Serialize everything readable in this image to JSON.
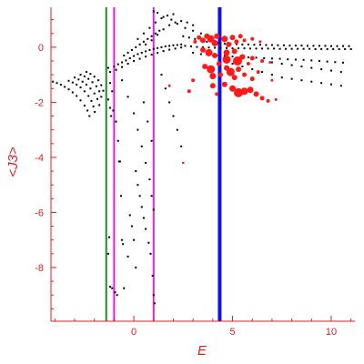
{
  "chart_data": {
    "type": "scatter",
    "title": "",
    "xlabel": "E",
    "ylabel": "<J3>",
    "xlim": [
      -4.2,
      11.2
    ],
    "ylim": [
      -9.95,
      1.45
    ],
    "x_ticks": [
      0,
      5,
      10
    ],
    "x_tick_labels": [
      "0",
      "5",
      "10"
    ],
    "y_ticks": [
      0,
      -2,
      -4,
      -6,
      -8
    ],
    "y_tick_labels": [
      "0",
      "-2",
      "-4",
      "-6",
      "-8"
    ],
    "grid": false,
    "legend": "none",
    "colors": {
      "axis": "#e8191f",
      "black_points": "#000000",
      "red_points": "#ff1a1a",
      "green_line": "#1e8c1e",
      "magenta_line": "#e020e0",
      "blue_line": "#1010e8"
    },
    "vertical_lines": [
      {
        "x": -1.4,
        "color": "#1e8c1e",
        "width": 2
      },
      {
        "x": -1.0,
        "color": "#e020e0",
        "width": 2
      },
      {
        "x": 1.0,
        "color": "#e020e0",
        "width": 2
      },
      {
        "x": 4.35,
        "color": "#1010e8",
        "width": 4
      }
    ],
    "black_series": [
      [
        -4.1,
        -1.25
      ],
      [
        -3.9,
        -1.3
      ],
      [
        -3.7,
        -1.36
      ],
      [
        -3.5,
        -1.44
      ],
      [
        -3.3,
        -1.53
      ],
      [
        -3.1,
        -1.64
      ],
      [
        -2.9,
        -1.77
      ],
      [
        -2.7,
        -1.93
      ],
      [
        -2.5,
        -2.12
      ],
      [
        -2.35,
        -2.3
      ],
      [
        -2.25,
        -2.5
      ],
      [
        -3.3,
        -1.22
      ],
      [
        -3.1,
        -1.28
      ],
      [
        -2.9,
        -1.36
      ],
      [
        -2.7,
        -1.46
      ],
      [
        -2.5,
        -1.6
      ],
      [
        -2.3,
        -1.77
      ],
      [
        -2.15,
        -1.95
      ],
      [
        -2.05,
        -2.15
      ],
      [
        -1.98,
        -2.35
      ],
      [
        -3.0,
        -1.1
      ],
      [
        -2.8,
        -1.17
      ],
      [
        -2.6,
        -1.25
      ],
      [
        -2.4,
        -1.36
      ],
      [
        -2.2,
        -1.5
      ],
      [
        -2.0,
        -1.68
      ],
      [
        -1.85,
        -1.88
      ],
      [
        -1.75,
        -2.1
      ],
      [
        -2.7,
        -1.0
      ],
      [
        -2.5,
        -1.06
      ],
      [
        -2.3,
        -1.15
      ],
      [
        -2.1,
        -1.27
      ],
      [
        -1.9,
        -1.42
      ],
      [
        -1.75,
        -1.6
      ],
      [
        -1.65,
        -1.8
      ],
      [
        -2.4,
        -0.9
      ],
      [
        -2.2,
        -0.97
      ],
      [
        -2.0,
        -1.07
      ],
      [
        -1.8,
        -1.2
      ],
      [
        -1.65,
        -1.38
      ],
      [
        -1.55,
        -1.58
      ],
      [
        -1.3,
        -1.9
      ],
      [
        -1.2,
        -2.2
      ],
      [
        -1.15,
        -2.5
      ],
      [
        -1.05,
        -2.3
      ],
      [
        -1.1,
        -1.6
      ],
      [
        -1.2,
        -1.3
      ],
      [
        -1.3,
        -0.75
      ],
      [
        -1.0,
        -0.7
      ],
      [
        -0.8,
        -0.62
      ],
      [
        -0.6,
        -0.55
      ],
      [
        -0.4,
        -0.48
      ],
      [
        -0.2,
        -0.4
      ],
      [
        0.0,
        -0.32
      ],
      [
        0.2,
        -0.25
      ],
      [
        0.4,
        -0.2
      ],
      [
        0.6,
        -0.15
      ],
      [
        0.8,
        -0.1
      ],
      [
        1.0,
        -0.06
      ],
      [
        1.2,
        -0.03
      ],
      [
        1.4,
        0.0
      ],
      [
        1.6,
        0.03
      ],
      [
        1.8,
        0.05
      ],
      [
        2.0,
        0.07
      ],
      [
        2.2,
        0.08
      ],
      [
        2.4,
        0.1
      ],
      [
        -1.2,
        -0.9
      ],
      [
        -0.9,
        -0.82
      ],
      [
        -0.6,
        -0.72
      ],
      [
        -0.3,
        -0.6
      ],
      [
        0.0,
        -0.5
      ],
      [
        0.3,
        -0.42
      ],
      [
        0.6,
        -0.34
      ],
      [
        0.9,
        -0.27
      ],
      [
        1.2,
        -0.2
      ],
      [
        1.5,
        -0.14
      ],
      [
        1.8,
        -0.09
      ],
      [
        2.1,
        -0.05
      ],
      [
        2.4,
        -0.01
      ],
      [
        -0.5,
        -0.3
      ],
      [
        -0.3,
        -0.2
      ],
      [
        -0.1,
        -0.1
      ],
      [
        0.1,
        0.0
      ],
      [
        0.3,
        0.1
      ],
      [
        0.5,
        0.2
      ],
      [
        0.7,
        0.3
      ],
      [
        0.9,
        0.4
      ],
      [
        1.1,
        0.5
      ],
      [
        1.3,
        0.6
      ],
      [
        0.2,
        0.3
      ],
      [
        0.5,
        0.5
      ],
      [
        0.8,
        0.7
      ],
      [
        1.1,
        0.9
      ],
      [
        1.4,
        1.05
      ],
      [
        1.7,
        1.15
      ],
      [
        2.0,
        1.2
      ],
      [
        0.6,
        0.1
      ],
      [
        0.9,
        0.25
      ],
      [
        1.2,
        0.45
      ],
      [
        1.5,
        0.65
      ],
      [
        1.8,
        0.8
      ],
      [
        2.1,
        0.9
      ],
      [
        2.4,
        0.95
      ],
      [
        2.7,
        0.9
      ],
      [
        3.0,
        0.8
      ],
      [
        1.0,
        1.3
      ],
      [
        1.2,
        1.25
      ],
      [
        1.5,
        1.1
      ],
      [
        1.9,
        1.0
      ],
      [
        2.2,
        0.85
      ],
      [
        2.6,
        0.7
      ],
      [
        3.0,
        0.6
      ],
      [
        3.4,
        0.5
      ],
      [
        2.5,
        0.4
      ],
      [
        2.8,
        0.35
      ],
      [
        3.1,
        0.3
      ],
      [
        3.4,
        0.25
      ],
      [
        3.7,
        0.2
      ],
      [
        4.0,
        0.18
      ],
      [
        4.3,
        0.15
      ],
      [
        4.6,
        0.13
      ],
      [
        4.9,
        0.12
      ],
      [
        5.2,
        0.11
      ],
      [
        5.5,
        0.1
      ],
      [
        5.8,
        0.1
      ],
      [
        6.1,
        0.09
      ],
      [
        6.4,
        0.09
      ],
      [
        6.7,
        0.08
      ],
      [
        7.0,
        0.08
      ],
      [
        7.3,
        0.07
      ],
      [
        7.6,
        0.07
      ],
      [
        7.9,
        0.06
      ],
      [
        8.2,
        0.06
      ],
      [
        8.5,
        0.06
      ],
      [
        8.8,
        0.05
      ],
      [
        9.1,
        0.05
      ],
      [
        9.4,
        0.05
      ],
      [
        9.7,
        0.05
      ],
      [
        10.0,
        0.04
      ],
      [
        10.3,
        0.04
      ],
      [
        10.6,
        0.04
      ],
      [
        10.9,
        0.04
      ],
      [
        2.6,
        0.05
      ],
      [
        2.9,
        0.03
      ],
      [
        3.2,
        0.01
      ],
      [
        3.5,
        0.0
      ],
      [
        3.8,
        -0.01
      ],
      [
        4.1,
        -0.02
      ],
      [
        4.4,
        -0.03
      ],
      [
        4.7,
        -0.03
      ],
      [
        5.0,
        -0.04
      ],
      [
        5.3,
        -0.04
      ],
      [
        5.6,
        -0.04
      ],
      [
        5.9,
        -0.05
      ],
      [
        6.2,
        -0.05
      ],
      [
        6.5,
        -0.05
      ],
      [
        6.8,
        -0.05
      ],
      [
        7.1,
        -0.05
      ],
      [
        7.4,
        -0.06
      ],
      [
        7.7,
        -0.06
      ],
      [
        8.0,
        -0.06
      ],
      [
        8.3,
        -0.06
      ],
      [
        8.6,
        -0.06
      ],
      [
        8.9,
        -0.06
      ],
      [
        9.2,
        -0.07
      ],
      [
        9.5,
        -0.07
      ],
      [
        9.8,
        -0.07
      ],
      [
        10.1,
        -0.07
      ],
      [
        10.4,
        -0.07
      ],
      [
        10.7,
        -0.07
      ],
      [
        11.0,
        -0.07
      ],
      [
        3.0,
        -0.2
      ],
      [
        3.4,
        -0.25
      ],
      [
        3.8,
        -0.28
      ],
      [
        4.2,
        -0.3
      ],
      [
        4.6,
        -0.32
      ],
      [
        5.0,
        -0.34
      ],
      [
        5.4,
        -0.35
      ],
      [
        5.8,
        -0.37
      ],
      [
        6.2,
        -0.38
      ],
      [
        6.6,
        -0.4
      ],
      [
        7.0,
        -0.41
      ],
      [
        7.4,
        -0.42
      ],
      [
        7.8,
        -0.44
      ],
      [
        8.2,
        -0.45
      ],
      [
        8.6,
        -0.46
      ],
      [
        9.0,
        -0.48
      ],
      [
        9.4,
        -0.5
      ],
      [
        9.8,
        -0.52
      ],
      [
        10.2,
        -0.54
      ],
      [
        10.6,
        -0.56
      ],
      [
        5.0,
        -0.6
      ],
      [
        5.5,
        -0.7
      ],
      [
        6.0,
        -0.8
      ],
      [
        6.5,
        -0.9
      ],
      [
        7.0,
        -1.0
      ],
      [
        7.5,
        -1.1
      ],
      [
        8.0,
        -1.15
      ],
      [
        8.5,
        -1.2
      ],
      [
        9.0,
        -1.25
      ],
      [
        9.5,
        -1.3
      ],
      [
        10.0,
        -1.35
      ],
      [
        10.5,
        -1.4
      ],
      [
        5.5,
        -0.3
      ],
      [
        6.0,
        -0.4
      ],
      [
        6.5,
        -0.5
      ],
      [
        7.0,
        -0.55
      ],
      [
        7.5,
        -0.6
      ],
      [
        8.0,
        -0.65
      ],
      [
        8.5,
        -0.7
      ],
      [
        9.0,
        -0.75
      ],
      [
        9.5,
        -0.8
      ],
      [
        10.0,
        -0.85
      ],
      [
        10.5,
        -0.9
      ],
      [
        -1.25,
        -6.9
      ],
      [
        -1.3,
        -7.5
      ],
      [
        -1.2,
        -8.7
      ],
      [
        -1.1,
        -8.75
      ],
      [
        -0.95,
        -8.9
      ],
      [
        -0.85,
        -9.0
      ],
      [
        -0.7,
        -4.15
      ],
      [
        -0.65,
        -5.4
      ],
      [
        -0.6,
        -7.0
      ],
      [
        -0.55,
        -7.15
      ],
      [
        -0.5,
        -8.75
      ],
      [
        0.1,
        -4.5
      ],
      [
        0.2,
        -5.0
      ],
      [
        0.3,
        -5.4
      ],
      [
        0.4,
        -5.8
      ],
      [
        0.5,
        -6.2
      ],
      [
        0.6,
        -6.6
      ],
      [
        0.75,
        -7.1
      ],
      [
        0.85,
        -7.5
      ],
      [
        0.95,
        -8.3
      ],
      [
        1.0,
        -9.0
      ],
      [
        1.05,
        -9.3
      ],
      [
        -0.2,
        -6.1
      ],
      [
        -0.1,
        -6.5
      ],
      [
        0.0,
        -7.0
      ],
      [
        0.1,
        -8.0
      ],
      [
        -0.3,
        -7.6
      ],
      [
        1.4,
        -1.0
      ],
      [
        1.6,
        -1.5
      ],
      [
        1.8,
        -2.0
      ],
      [
        2.0,
        -2.5
      ],
      [
        2.2,
        -3.0
      ],
      [
        2.4,
        -3.6
      ],
      [
        2.5,
        -4.2
      ],
      [
        -0.6,
        -1.2
      ],
      [
        -0.3,
        -1.8
      ],
      [
        0.0,
        -2.4
      ],
      [
        0.2,
        -3.0
      ],
      [
        0.4,
        -3.6
      ],
      [
        0.6,
        -4.2
      ],
      [
        0.8,
        -4.8
      ],
      [
        0.9,
        -5.4
      ],
      [
        1.0,
        -5.9
      ],
      [
        -0.9,
        -2.7
      ],
      [
        -0.8,
        -3.4
      ],
      [
        -0.75,
        -4.15
      ],
      [
        0.5,
        -2.0
      ],
      [
        0.7,
        -2.7
      ],
      [
        0.9,
        -3.4
      ]
    ],
    "red_series": [
      {
        "x": 3.1,
        "y": 0.2,
        "r": 2
      },
      {
        "x": 3.3,
        "y": 0.35,
        "r": 2.5
      },
      {
        "x": 3.5,
        "y": 0.25,
        "r": 3
      },
      {
        "x": 3.7,
        "y": 0.4,
        "r": 3
      },
      {
        "x": 3.9,
        "y": 0.3,
        "r": 4
      },
      {
        "x": 4.1,
        "y": 0.15,
        "r": 3.5
      },
      {
        "x": 4.2,
        "y": 0.4,
        "r": 3
      },
      {
        "x": 4.6,
        "y": 0.3,
        "r": 3.5
      },
      {
        "x": 4.8,
        "y": 0.1,
        "r": 3
      },
      {
        "x": 5.0,
        "y": 0.35,
        "r": 3
      },
      {
        "x": 5.2,
        "y": 0.2,
        "r": 2.5
      },
      {
        "x": 5.4,
        "y": 0.4,
        "r": 2.5
      },
      {
        "x": 5.6,
        "y": 0.25,
        "r": 2
      },
      {
        "x": 6.0,
        "y": 0.3,
        "r": 2
      },
      {
        "x": 6.4,
        "y": 0.2,
        "r": 1.5
      },
      {
        "x": 3.5,
        "y": -0.1,
        "r": 3
      },
      {
        "x": 3.8,
        "y": -0.2,
        "r": 4
      },
      {
        "x": 4.1,
        "y": -0.3,
        "r": 3
      },
      {
        "x": 4.7,
        "y": -0.2,
        "r": 3.5
      },
      {
        "x": 5.1,
        "y": -0.15,
        "r": 3
      },
      {
        "x": 5.5,
        "y": -0.35,
        "r": 3
      },
      {
        "x": 6.0,
        "y": -0.4,
        "r": 2.5
      },
      {
        "x": 6.5,
        "y": -0.5,
        "r": 2
      },
      {
        "x": 6.9,
        "y": -0.55,
        "r": 1.5
      },
      {
        "x": 3.6,
        "y": -0.7,
        "r": 3
      },
      {
        "x": 3.9,
        "y": -0.8,
        "r": 4.5
      },
      {
        "x": 4.0,
        "y": -1.05,
        "r": 3.5
      },
      {
        "x": 4.7,
        "y": -0.75,
        "r": 3
      },
      {
        "x": 4.9,
        "y": -0.9,
        "r": 4.5
      },
      {
        "x": 5.1,
        "y": -1.1,
        "r": 3
      },
      {
        "x": 5.3,
        "y": -0.8,
        "r": 3
      },
      {
        "x": 5.6,
        "y": -1.0,
        "r": 2.5
      },
      {
        "x": 6.0,
        "y": -1.15,
        "r": 2.5
      },
      {
        "x": 4.0,
        "y": -1.4,
        "r": 3
      },
      {
        "x": 4.6,
        "y": -1.35,
        "r": 3
      },
      {
        "x": 5.0,
        "y": -1.5,
        "r": 3.5
      },
      {
        "x": 5.3,
        "y": -1.65,
        "r": 5
      },
      {
        "x": 5.6,
        "y": -1.6,
        "r": 4
      },
      {
        "x": 5.9,
        "y": -1.55,
        "r": 3.5
      },
      {
        "x": 6.2,
        "y": -1.7,
        "r": 3
      },
      {
        "x": 6.5,
        "y": -1.85,
        "r": 2.5
      },
      {
        "x": 6.8,
        "y": -1.95,
        "r": 2
      },
      {
        "x": 7.2,
        "y": -1.9,
        "r": 1.5
      },
      {
        "x": 1.8,
        "y": -1.4,
        "r": 1.5
      },
      {
        "x": 2.8,
        "y": -1.6,
        "r": 2
      },
      {
        "x": 3.0,
        "y": -1.2,
        "r": 2
      },
      {
        "x": 4.3,
        "y": -0.6,
        "r": 2.5
      },
      {
        "x": 4.4,
        "y": -1.0,
        "r": 2.5
      },
      {
        "x": 5.8,
        "y": -0.6,
        "r": 2
      },
      {
        "x": 6.3,
        "y": -0.9,
        "r": 2
      },
      {
        "x": 7.0,
        "y": -1.2,
        "r": 1.5
      },
      {
        "x": 4.2,
        "y": -1.7,
        "r": 2
      },
      {
        "x": 2.5,
        "y": -4.2,
        "r": 1.2
      },
      {
        "x": 4.7,
        "y": -0.45,
        "r": 4.5
      },
      {
        "x": 5.25,
        "y": -0.5,
        "r": 5
      }
    ]
  }
}
